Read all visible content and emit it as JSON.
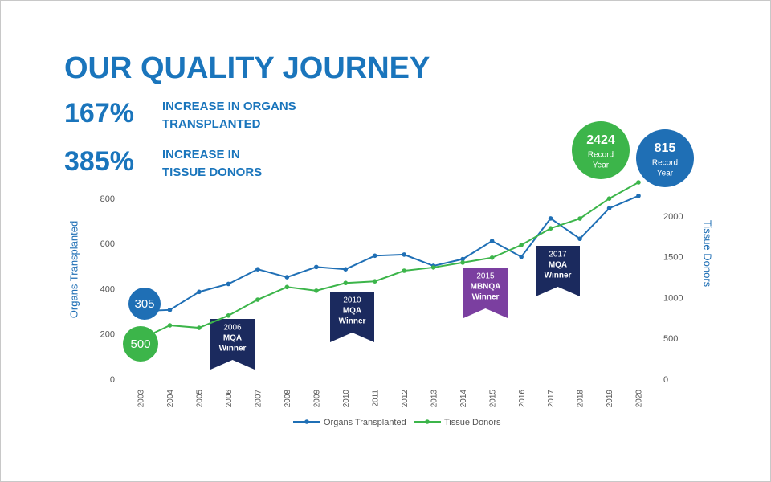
{
  "chart_data": {
    "type": "line",
    "title": "OUR QUALITY JOURNEY",
    "stats": [
      {
        "value": "167%",
        "lines": [
          "INCREASE IN ORGANS",
          "TRANSPLANTED"
        ]
      },
      {
        "value": "385%",
        "lines": [
          "INCREASE IN",
          "TISSUE DONORS"
        ]
      }
    ],
    "y_label": "Organs Transplanted",
    "y2_label": "Tissue Donors",
    "categories": [
      "2003",
      "2004",
      "2005",
      "2006",
      "2007",
      "2008",
      "2009",
      "2010",
      "2011",
      "2012",
      "2013",
      "2014",
      "2015",
      "2016",
      "2017",
      "2018",
      "2019",
      "2020"
    ],
    "series": [
      {
        "name": "Organs Transplanted",
        "color": "#1f6fb5",
        "axis": "y",
        "values": [
          305,
          310,
          390,
          425,
          490,
          455,
          500,
          490,
          550,
          555,
          505,
          535,
          615,
          545,
          715,
          625,
          760,
          815
        ]
      },
      {
        "name": "Tissue Donors",
        "color": "#3cb54a",
        "axis": "y2",
        "values": [
          500,
          670,
          640,
          790,
          985,
          1140,
          1095,
          1190,
          1210,
          1340,
          1380,
          1440,
          1500,
          1655,
          1860,
          1980,
          2225,
          2424
        ]
      }
    ],
    "ylim": [
      0,
      800
    ],
    "yticks": [
      0,
      200,
      400,
      600,
      800
    ],
    "y2lim": [
      0,
      2217
    ],
    "y2ticks": [
      0,
      500,
      1000,
      1500,
      2000
    ],
    "record_note": [
      "Record",
      "Year"
    ],
    "banners": [
      {
        "lines": [
          "2006",
          "MQA",
          "Winner"
        ],
        "color": "#1b2a5e"
      },
      {
        "lines": [
          "2010",
          "MQA",
          "Winner"
        ],
        "color": "#1b2a5e"
      },
      {
        "lines": [
          "2015",
          "MBNQA",
          "Winner"
        ],
        "color": "#7b3fa0"
      },
      {
        "lines": [
          "2017",
          "MQA",
          "Winner"
        ],
        "color": "#1b2a5e"
      }
    ],
    "grid": false
  }
}
